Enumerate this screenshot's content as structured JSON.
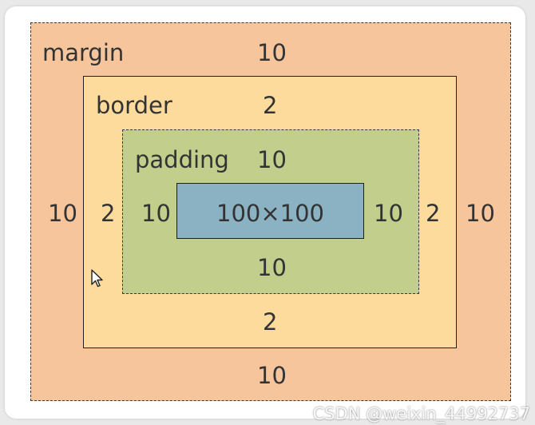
{
  "diagram": {
    "margin": {
      "label": "margin",
      "top": "10",
      "left": "10",
      "right": "10",
      "bottom": "10"
    },
    "border": {
      "label": "border",
      "top": "2",
      "left": "2",
      "right": "2",
      "bottom": "2"
    },
    "padding": {
      "label": "padding",
      "top": "10",
      "left": "10",
      "right": "10",
      "bottom": "10"
    },
    "content": {
      "label": "100×100"
    }
  },
  "colors": {
    "margin": "#f6c59c",
    "border": "#fddb9d",
    "padding": "#c1ce8c",
    "content": "#8ab2c2"
  },
  "icons": {
    "cursor": "mouse-pointer-icon"
  },
  "watermark": "CSDN @weixin_44992737"
}
